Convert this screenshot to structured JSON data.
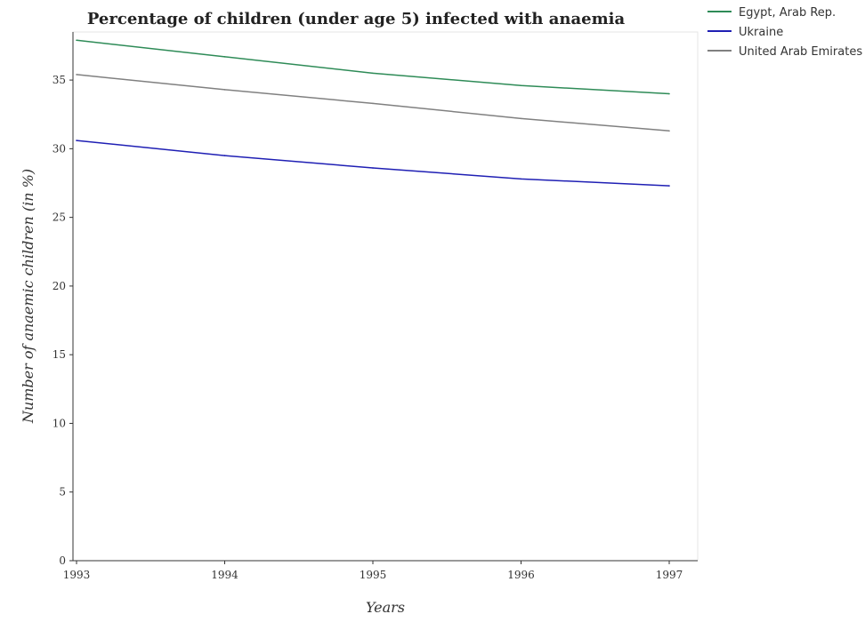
{
  "chart_data": {
    "type": "line",
    "title": "Percentage of children (under age 5) infected with anaemia",
    "xlabel": "Years",
    "ylabel": "Number of anaemic children (in %)",
    "categories": [
      "1993",
      "1994",
      "1995",
      "1996",
      "1997"
    ],
    "ylim": [
      0,
      38.5
    ],
    "yticks": [
      0,
      5,
      10,
      15,
      20,
      25,
      30,
      35
    ],
    "legend_position": "top-right",
    "grid": false,
    "series": [
      {
        "name": "Egypt, Arab Rep.",
        "color": "#2e8b57",
        "values": [
          37.9,
          36.7,
          35.5,
          34.6,
          34.0
        ]
      },
      {
        "name": "Ukraine",
        "color": "#1f1fb4",
        "values": [
          30.6,
          29.5,
          28.6,
          27.8,
          27.3
        ]
      },
      {
        "name": "United Arab Emirates",
        "color": "#808080",
        "values": [
          35.4,
          34.3,
          33.3,
          32.2,
          31.3
        ]
      }
    ]
  }
}
